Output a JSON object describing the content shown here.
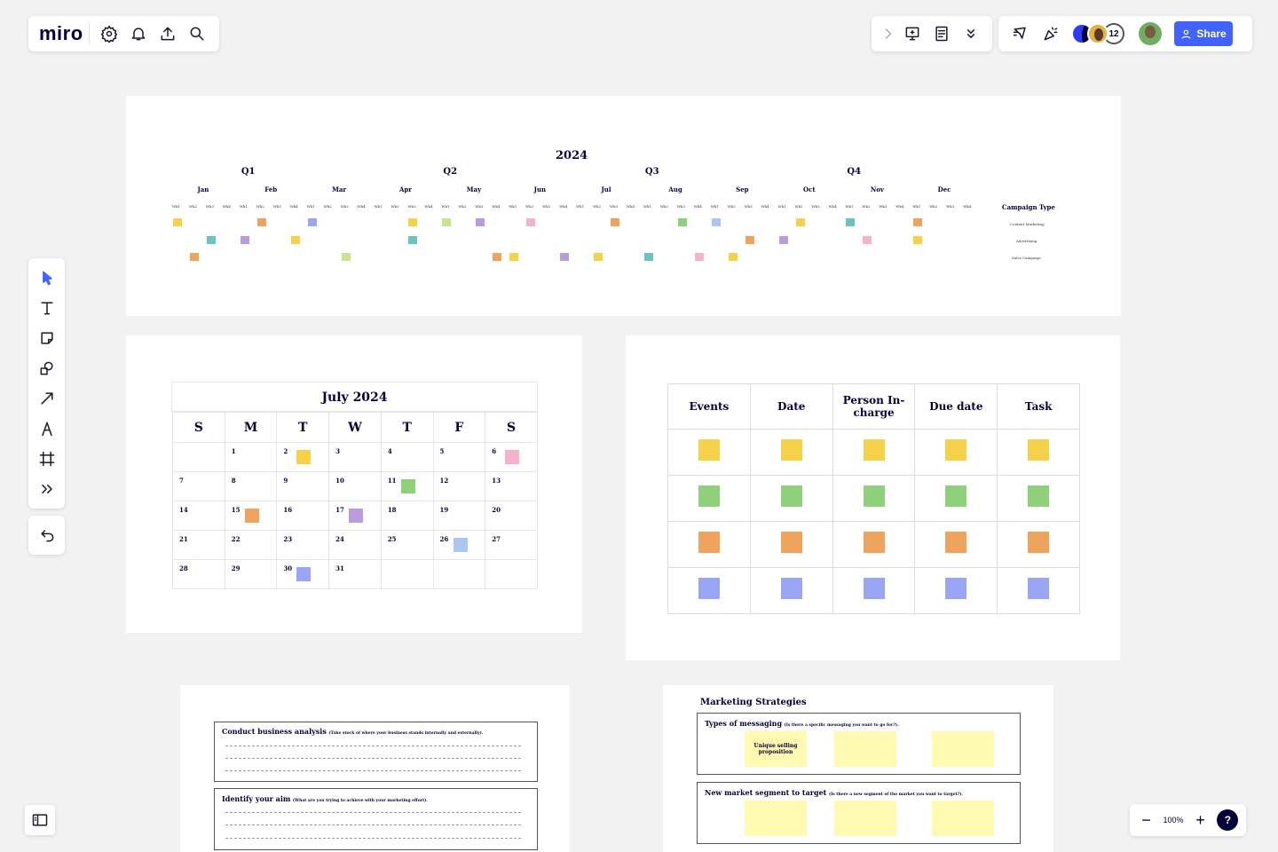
{
  "app": {
    "logo": "miro",
    "share_label": "Share",
    "collaborator_count": "12",
    "zoom": "100%",
    "help": "?"
  },
  "timeline": {
    "year": "2024",
    "quarters": [
      "Q1",
      "Q2",
      "Q3",
      "Q4"
    ],
    "months": [
      "Jan",
      "Feb",
      "Mar",
      "Apr",
      "May",
      "Jun",
      "Jul",
      "Aug",
      "Sep",
      "Oct",
      "Nov",
      "Dec"
    ],
    "week_labels": [
      "Wk1",
      "Wk2",
      "Wk3",
      "Wk4"
    ],
    "legend_title": "Campaign Type",
    "legend": [
      "Content Marketing",
      "Advertising",
      "Sales Campaign"
    ]
  },
  "calendar": {
    "title": "July 2024",
    "days": [
      "S",
      "M",
      "T",
      "W",
      "T",
      "F",
      "S"
    ],
    "weeks": [
      [
        "",
        "1",
        "2",
        "3",
        "4",
        "5",
        "6"
      ],
      [
        "7",
        "8",
        "9",
        "10",
        "11",
        "12",
        "13"
      ],
      [
        "14",
        "15",
        "16",
        "17",
        "18",
        "19",
        "20"
      ],
      [
        "21",
        "22",
        "23",
        "24",
        "25",
        "26",
        "27"
      ],
      [
        "28",
        "29",
        "30",
        "31",
        "",
        "",
        ""
      ]
    ]
  },
  "task_table": {
    "headers": [
      "Events",
      "Date",
      "Person In-charge",
      "Due date",
      "Task"
    ]
  },
  "business": {
    "box1_title": "Conduct business analysis",
    "box1_hint": "(Take stock of where your business stands internally and externally).",
    "box2_title": "Identify your aim",
    "box2_hint": "(What are you trying to achieve with your marketing effort)."
  },
  "strategies": {
    "title": "Marketing Strategies",
    "box1_title": "Types of messaging",
    "box1_hint": "(Is there a specific messaging you want to go for?).",
    "box1_sticky": "Unique selling proposition",
    "box2_title": "New market segment to target",
    "box2_hint": "(Is there a new segment of the market you want to target?)."
  },
  "colors": {
    "yellow": "#f5d249",
    "green": "#8fd07a",
    "orange": "#f0a35c",
    "purple": "#b99be0",
    "blue": "#9aa6f5",
    "teal": "#6cc4c0",
    "pink": "#f3b3cf",
    "lightgreen": "#c6e58c",
    "lightblue": "#a9c8f0"
  }
}
